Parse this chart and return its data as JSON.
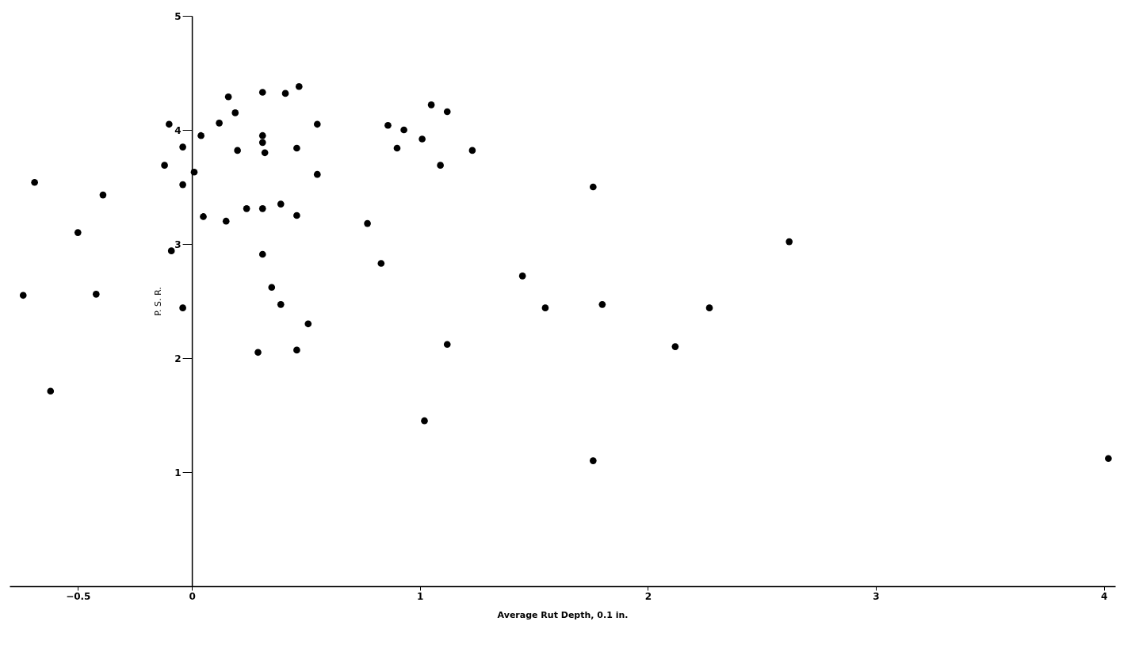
{
  "chart_data": {
    "type": "scatter",
    "xlabel": "Average Rut Depth,   0.1 in.",
    "ylabel": "P. S. R.",
    "x": [
      -0.69,
      -0.39,
      -0.5,
      -0.74,
      -0.42,
      -0.62,
      -0.1,
      -0.12,
      -0.04,
      -0.04,
      -0.09,
      -0.04,
      0.01,
      0.04,
      0.05,
      0.12,
      0.16,
      0.19,
      0.2,
      0.15,
      0.24,
      0.31,
      0.31,
      0.31,
      0.32,
      0.31,
      0.31,
      0.35,
      0.39,
      0.29,
      0.41,
      0.47,
      0.39,
      0.46,
      0.46,
      0.46,
      0.51,
      0.55,
      0.55,
      0.77,
      0.83,
      0.86,
      0.9,
      0.93,
      1.01,
      1.05,
      1.12,
      1.09,
      1.23,
      1.12,
      1.76,
      2.62,
      1.45,
      1.55,
      1.8,
      2.27,
      2.12,
      1.02,
      1.76,
      4.02
    ],
    "series": [
      {
        "color": "#000000",
        "values": [
          3.54,
          3.43,
          3.1,
          2.55,
          2.56,
          1.71,
          4.05,
          3.69,
          3.85,
          3.52,
          2.94,
          2.44,
          3.63,
          3.95,
          3.24,
          4.06,
          4.29,
          4.15,
          3.82,
          3.2,
          3.31,
          4.33,
          3.95,
          3.89,
          3.8,
          3.31,
          2.91,
          2.62,
          2.47,
          2.05,
          4.32,
          4.38,
          3.35,
          3.84,
          3.25,
          2.07,
          2.3,
          4.05,
          3.61,
          3.18,
          2.83,
          4.04,
          3.84,
          4.0,
          3.92,
          4.22,
          4.16,
          3.69,
          3.82,
          2.12,
          3.5,
          3.02,
          2.72,
          2.44,
          2.47,
          2.44,
          2.1,
          1.45,
          1.1,
          1.12
        ]
      }
    ],
    "xlim": [
      -0.8,
      4.05
    ],
    "ylim": [
      0,
      5
    ],
    "xticks": [
      -0.5,
      0,
      1,
      2,
      3,
      4
    ],
    "yticks": [
      1,
      2,
      3,
      4,
      5
    ],
    "grid": false,
    "marker": "circle",
    "legend": false
  }
}
